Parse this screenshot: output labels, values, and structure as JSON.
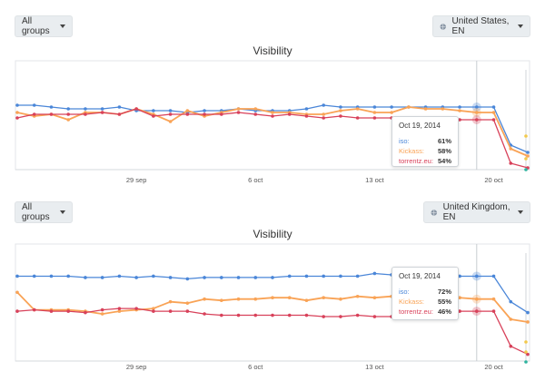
{
  "colors": {
    "iso": "#4a86d8",
    "kickass": "#f9a356",
    "torrentz": "#d8415a"
  },
  "panels": [
    {
      "group_dropdown": "All groups",
      "region_dropdown": "United States, EN",
      "title": "Visibility",
      "tooltip": {
        "date": "Oct 19, 2014",
        "rows": [
          {
            "label": "iso:",
            "value": "61%",
            "color": "#4a86d8"
          },
          {
            "label": "Kickass:",
            "value": "58%",
            "color": "#f9a356"
          },
          {
            "label": "torrentz.eu:",
            "value": "54%",
            "color": "#d8415a"
          }
        ]
      }
    },
    {
      "group_dropdown": "All groups",
      "region_dropdown": "United Kingdom, EN",
      "title": "Visibility",
      "tooltip": {
        "date": "Oct 19, 2014",
        "rows": [
          {
            "label": "iso:",
            "value": "72%",
            "color": "#4a86d8"
          },
          {
            "label": "Kickass:",
            "value": "55%",
            "color": "#f9a356"
          },
          {
            "label": "torrentz.eu:",
            "value": "46%",
            "color": "#d8415a"
          }
        ]
      }
    }
  ],
  "chart_data": [
    {
      "type": "line",
      "title": "Visibility",
      "x_tick_labels": [
        "29 sep",
        "6 oct",
        "13 oct",
        "20 oct"
      ],
      "x": [
        "Sep 22",
        "Sep 23",
        "Sep 24",
        "Sep 25",
        "Sep 26",
        "Sep 27",
        "Sep 28",
        "Sep 29",
        "Sep 30",
        "Oct 1",
        "Oct 2",
        "Oct 3",
        "Oct 4",
        "Oct 5",
        "Oct 6",
        "Oct 7",
        "Oct 8",
        "Oct 9",
        "Oct 10",
        "Oct 11",
        "Oct 12",
        "Oct 13",
        "Oct 14",
        "Oct 15",
        "Oct 16",
        "Oct 17",
        "Oct 18",
        "Oct 19",
        "Oct 20",
        "Oct 21",
        "Oct 22"
      ],
      "series": [
        {
          "name": "iso",
          "values": [
            62,
            62,
            61,
            60,
            60,
            60,
            61,
            59,
            59,
            59,
            58,
            59,
            59,
            60,
            59,
            59,
            59,
            60,
            62,
            61,
            61,
            61,
            61,
            61,
            61,
            61,
            61,
            61,
            61,
            40,
            36
          ]
        },
        {
          "name": "Kickass",
          "values": [
            58,
            56,
            57,
            54,
            58,
            58,
            57,
            60,
            57,
            53,
            59,
            56,
            58,
            60,
            60,
            58,
            58,
            57,
            57,
            59,
            60,
            58,
            58,
            61,
            60,
            60,
            59,
            58,
            58,
            38,
            34
          ]
        },
        {
          "name": "torrentz.eu",
          "values": [
            55,
            57,
            57,
            57,
            57,
            58,
            57,
            60,
            56,
            57,
            57,
            57,
            57,
            58,
            57,
            56,
            57,
            56,
            55,
            56,
            55,
            55,
            55,
            55,
            55,
            55,
            54,
            54,
            54,
            30,
            24
          ]
        }
      ]
    },
    {
      "type": "line",
      "title": "Visibility",
      "x_tick_labels": [
        "29 sep",
        "6 oct",
        "13 oct",
        "20 oct"
      ],
      "x": [
        "Sep 22",
        "Sep 23",
        "Sep 24",
        "Sep 25",
        "Sep 26",
        "Sep 27",
        "Sep 28",
        "Sep 29",
        "Sep 30",
        "Oct 1",
        "Oct 2",
        "Oct 3",
        "Oct 4",
        "Oct 5",
        "Oct 6",
        "Oct 7",
        "Oct 8",
        "Oct 9",
        "Oct 10",
        "Oct 11",
        "Oct 12",
        "Oct 13",
        "Oct 14",
        "Oct 15",
        "Oct 16",
        "Oct 17",
        "Oct 18",
        "Oct 19",
        "Oct 20",
        "Oct 21",
        "Oct 22"
      ],
      "series": [
        {
          "name": "iso",
          "values": [
            72,
            72,
            72,
            72,
            71,
            71,
            72,
            71,
            72,
            71,
            70,
            71,
            71,
            71,
            71,
            71,
            72,
            72,
            72,
            72,
            72,
            74,
            73,
            73,
            73,
            73,
            72,
            72,
            72,
            53,
            45
          ]
        },
        {
          "name": "Kickass",
          "values": [
            60,
            47,
            47,
            47,
            46,
            44,
            46,
            47,
            48,
            53,
            52,
            55,
            54,
            55,
            55,
            56,
            56,
            54,
            56,
            55,
            57,
            56,
            57,
            56,
            57,
            57,
            56,
            55,
            55,
            40,
            38
          ]
        },
        {
          "name": "torrentz.eu",
          "values": [
            46,
            47,
            46,
            46,
            45,
            47,
            48,
            48,
            46,
            46,
            46,
            44,
            43,
            43,
            43,
            43,
            43,
            43,
            42,
            42,
            43,
            42,
            42,
            43,
            42,
            42,
            46,
            46,
            46,
            20,
            14
          ]
        }
      ]
    }
  ]
}
